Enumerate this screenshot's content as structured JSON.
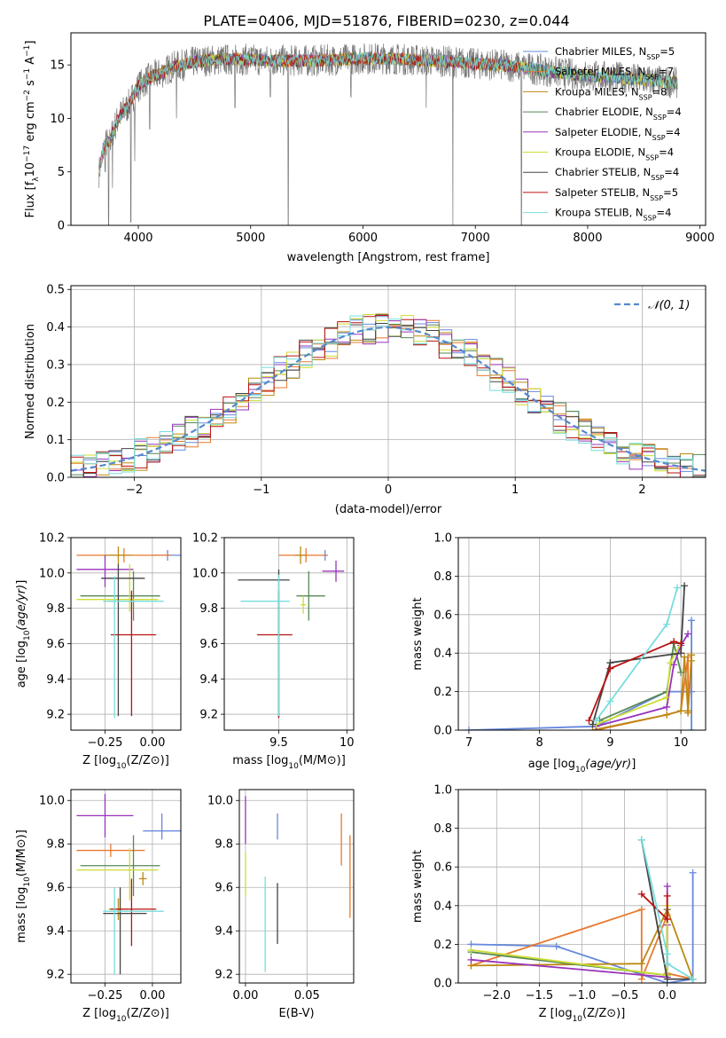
{
  "figure_title": "PLATE=0406, MJD=51876, FIBERID=0230, z=0.044",
  "series": [
    {
      "key": "chabrier_miles",
      "label": "Chabrier MILES, N",
      "nssp": "5",
      "color": "#6688dd"
    },
    {
      "key": "salpeter_miles",
      "label": "Salpeter MILES, N",
      "nssp": "7",
      "color": "#e8782c"
    },
    {
      "key": "kroupa_miles",
      "label": "Kroupa MILES, N",
      "nssp": "8",
      "color": "#bb8811"
    },
    {
      "key": "chabrier_elodie",
      "label": "Chabrier ELODIE, N",
      "nssp": "4",
      "color": "#558855"
    },
    {
      "key": "salpeter_elodie",
      "label": "Salpeter ELODIE, N",
      "nssp": "4",
      "color": "#9933bb"
    },
    {
      "key": "kroupa_elodie",
      "label": "Kroupa ELODIE, N",
      "nssp": "4",
      "color": "#ccdd33"
    },
    {
      "key": "chabrier_stelib",
      "label": "Chabrier STELIB, N",
      "nssp": "4",
      "color": "#444444"
    },
    {
      "key": "salpeter_stelib",
      "label": "Salpeter STELIB, N",
      "nssp": "5",
      "color": "#bb1111"
    },
    {
      "key": "kroupa_stelib",
      "label": "Kroupa STELIB, N",
      "nssp": "4",
      "color": "#77dddd"
    }
  ],
  "legend_subscript": "SSP",
  "chart_data": [
    {
      "id": "spectrum",
      "type": "line",
      "title": "PLATE=0406, MJD=51876, FIBERID=0230, z=0.044",
      "xlabel": "wavelength [Angstrom, rest frame]",
      "ylabel": "Flux [f",
      "xlim": [
        3400,
        9050
      ],
      "ylim": [
        0,
        18
      ],
      "xticks": [
        4000,
        5000,
        6000,
        7000,
        8000,
        9000
      ],
      "yticks": [
        0,
        5,
        10,
        15
      ],
      "data_color": "#777777",
      "legend": "top-right",
      "anchors_x": [
        3650,
        3700,
        3750,
        3800,
        3850,
        3900,
        3950,
        4000,
        4100,
        4200,
        4300,
        4400,
        4500,
        4600,
        4800,
        5000,
        5200,
        5400,
        5600,
        5800,
        6000,
        6200,
        6400,
        6600,
        6800,
        7000,
        7200,
        7400,
        7600,
        7800,
        8000,
        8200,
        8400,
        8600,
        8800
      ],
      "anchors_y": [
        5,
        7.5,
        8,
        9.5,
        10.5,
        11,
        12,
        13,
        13.8,
        14.2,
        14.8,
        15,
        15.3,
        15.4,
        15.5,
        15.5,
        15.4,
        15.4,
        15.4,
        15.5,
        15.6,
        15.6,
        15.5,
        15.4,
        15.3,
        15.1,
        15,
        14.8,
        14.5,
        14.2,
        14,
        13.9,
        13.7,
        13.5,
        13.3
      ],
      "dips": [
        [
          3706,
          5
        ],
        [
          3735,
          0
        ],
        [
          3770,
          3.5
        ],
        [
          3934,
          0.3
        ],
        [
          3968,
          6
        ],
        [
          4101,
          9
        ],
        [
          4340,
          10
        ],
        [
          4861,
          11
        ],
        [
          5175,
          12
        ],
        [
          5335,
          0
        ],
        [
          5893,
          12
        ],
        [
          6563,
          11
        ],
        [
          6800,
          0
        ],
        [
          7410,
          0
        ]
      ]
    },
    {
      "id": "residuals",
      "type": "histogram",
      "xlabel": "(data-model)/error",
      "ylabel": "Normed distribution",
      "xlim": [
        -2.5,
        2.5
      ],
      "ylim": [
        0,
        0.51
      ],
      "xticks": [
        -2,
        -1,
        0,
        1,
        2
      ],
      "yticks": [
        0,
        0.1,
        0.2,
        0.3,
        0.4,
        0.5
      ],
      "bin_width": 0.1,
      "grid": true,
      "legend_label": "𝒩(0, 1)",
      "legend_color": "#5588cc",
      "legend": "top-right",
      "gaussian": {
        "mu": 0,
        "sigma": 1
      }
    },
    {
      "id": "age_vs_Z",
      "type": "errorbar",
      "xlabel": "Z [log",
      "ylabel": "age  [log",
      "xlim": [
        -0.43,
        0.15
      ],
      "ylim": [
        9.11,
        10.2
      ],
      "xticks": [
        -0.25,
        0
      ],
      "yticks": [
        9.2,
        9.4,
        9.6,
        9.8,
        10.0,
        10.2
      ],
      "xtick_labels": [
        "−0.25",
        "0.00"
      ],
      "grid": true,
      "points": [
        {
          "series": 0,
          "x": 0.08,
          "y": 10.1,
          "xerr": [
            0.08,
            0.08
          ],
          "yerr": [
            0.03,
            0.03
          ]
        },
        {
          "series": 1,
          "x": -0.15,
          "y": 10.1,
          "xerr": [
            0.25,
            0.25
          ],
          "yerr": [
            0.04,
            0.04
          ]
        },
        {
          "series": 2,
          "x": -0.18,
          "y": 10.1,
          "xerr": [
            0.07,
            0.07
          ],
          "yerr": [
            0.05,
            0.05
          ]
        },
        {
          "series": 3,
          "x": -0.1,
          "y": 9.87,
          "xerr": [
            0.28,
            0.14
          ],
          "yerr": [
            0.14,
            0.14
          ]
        },
        {
          "series": 4,
          "x": -0.25,
          "y": 10.02,
          "xerr": [
            0.15,
            0.15
          ],
          "yerr": [
            0.1,
            0.08
          ]
        },
        {
          "series": 5,
          "x": -0.12,
          "y": 9.85,
          "xerr": [
            0.28,
            0.15
          ],
          "yerr": [
            0.07,
            0.2
          ]
        },
        {
          "series": 6,
          "x": -0.18,
          "y": 9.97,
          "xerr": [
            0.09,
            0.14
          ],
          "yerr": [
            0.78,
            0.08
          ]
        },
        {
          "series": 7,
          "x": -0.11,
          "y": 9.65,
          "xerr": [
            0.11,
            0.13
          ],
          "yerr": [
            0.46,
            0.25
          ]
        },
        {
          "series": 8,
          "x": -0.2,
          "y": 9.84,
          "xerr": [
            0.06,
            0.26
          ],
          "yerr": [
            0.66,
            0.14
          ]
        }
      ]
    },
    {
      "id": "age_vs_mass",
      "type": "errorbar",
      "xlabel": "mass [log",
      "ylabel": "",
      "xlim": [
        9.1,
        10.05
      ],
      "ylim": [
        9.11,
        10.2
      ],
      "xticks": [
        9.5,
        10.0
      ],
      "yticks": [
        9.2,
        9.4,
        9.6,
        9.8,
        10.0,
        10.2
      ],
      "grid": true,
      "points": [
        {
          "series": 0,
          "x": 9.84,
          "y": 10.1,
          "xerr": [
            0.02,
            0.02
          ],
          "yerr": [
            0.03,
            0.03
          ]
        },
        {
          "series": 1,
          "x": 9.7,
          "y": 10.1,
          "xerr": [
            0.2,
            0.15
          ],
          "yerr": [
            0.04,
            0.04
          ]
        },
        {
          "series": 2,
          "x": 9.66,
          "y": 10.1,
          "xerr": [
            0.04,
            0.04
          ],
          "yerr": [
            0.05,
            0.05
          ]
        },
        {
          "series": 3,
          "x": 9.72,
          "y": 9.87,
          "xerr": [
            0.09,
            0.12
          ],
          "yerr": [
            0.14,
            0.14
          ]
        },
        {
          "series": 4,
          "x": 9.92,
          "y": 10.01,
          "xerr": [
            0.1,
            0.06
          ],
          "yerr": [
            0.06,
            0.06
          ]
        },
        {
          "series": 5,
          "x": 9.68,
          "y": 9.82,
          "xerr": [
            0.02,
            0.02
          ],
          "yerr": [
            0.05,
            0.05
          ]
        },
        {
          "series": 6,
          "x": 9.5,
          "y": 9.96,
          "xerr": [
            0.3,
            0.08
          ],
          "yerr": [
            0.78,
            0.06
          ]
        },
        {
          "series": 7,
          "x": 9.5,
          "y": 9.65,
          "xerr": [
            0.16,
            0.1
          ],
          "yerr": [
            0.47,
            0.25
          ]
        },
        {
          "series": 8,
          "x": 9.5,
          "y": 9.84,
          "xerr": [
            0.28,
            0.08
          ],
          "yerr": [
            0.65,
            0.15
          ]
        }
      ]
    },
    {
      "id": "mw_vs_age",
      "type": "line",
      "xlabel": "age  [log",
      "ylabel": "mass weight",
      "xlim": [
        6.85,
        10.35
      ],
      "ylim": [
        0,
        1.0
      ],
      "xticks": [
        7,
        8,
        9,
        10
      ],
      "yticks": [
        0,
        0.2,
        0.4,
        0.6,
        0.8,
        1.0
      ],
      "grid": true,
      "lines": [
        {
          "series": 0,
          "x": [
            7.0,
            8.8,
            9.8,
            10.15,
            10.15,
            10.15
          ],
          "y": [
            0.0,
            0.02,
            0.2,
            0.2,
            0.57,
            0.0
          ]
        },
        {
          "series": 1,
          "x": [
            8.8,
            9.8,
            10.0,
            10.1,
            10.1,
            10.1,
            10.15
          ],
          "y": [
            0.0,
            0.08,
            0.1,
            0.38,
            0.1,
            0.09,
            0.39
          ]
        },
        {
          "series": 2,
          "x": [
            8.75,
            9.8,
            10.0,
            10.05,
            10.1,
            10.1,
            10.15,
            10.15
          ],
          "y": [
            0.0,
            0.08,
            0.1,
            0.38,
            0.1,
            0.09,
            0.39,
            0.36
          ]
        },
        {
          "series": 3,
          "x": [
            8.85,
            9.8,
            9.9,
            10.0
          ],
          "y": [
            0.05,
            0.2,
            0.45,
            0.3
          ]
        },
        {
          "series": 4,
          "x": [
            8.8,
            9.8,
            9.9,
            10.0,
            10.1
          ],
          "y": [
            0.02,
            0.12,
            0.34,
            0.44,
            0.5
          ]
        },
        {
          "series": 5,
          "x": [
            8.8,
            9.8,
            9.85,
            10.0
          ],
          "y": [
            0.03,
            0.17,
            0.35,
            0.45
          ]
        },
        {
          "series": 6,
          "x": [
            8.75,
            9.0,
            10.0,
            10.05
          ],
          "y": [
            0.03,
            0.35,
            0.4,
            0.75
          ]
        },
        {
          "series": 7,
          "x": [
            8.7,
            9.0,
            9.9,
            10.0
          ],
          "y": [
            0.05,
            0.32,
            0.46,
            0.45
          ]
        },
        {
          "series": 8,
          "x": [
            8.8,
            9.0,
            9.8,
            9.95
          ],
          "y": [
            0.05,
            0.15,
            0.55,
            0.74
          ]
        }
      ]
    },
    {
      "id": "mass_vs_Z",
      "type": "errorbar",
      "xlabel": "Z [log",
      "ylabel": "mass [log",
      "xlim": [
        -0.43,
        0.15
      ],
      "ylim": [
        9.16,
        10.05
      ],
      "xticks": [
        -0.25,
        0
      ],
      "yticks": [
        9.2,
        9.4,
        9.6,
        9.8,
        10.0
      ],
      "xtick_labels": [
        "−0.25",
        "0.00"
      ],
      "grid": true,
      "points": [
        {
          "series": 0,
          "x": 0.05,
          "y": 9.86,
          "xerr": [
            0.1,
            0.1
          ],
          "yerr": [
            0.04,
            0.08
          ]
        },
        {
          "series": 1,
          "x": -0.22,
          "y": 9.77,
          "xerr": [
            0.18,
            0.18
          ],
          "yerr": [
            0.03,
            0.03
          ]
        },
        {
          "series": 2,
          "x": -0.18,
          "y": 9.5,
          "xerr": [
            0.05,
            0.05
          ],
          "yerr": [
            0.05,
            0.05
          ]
        },
        {
          "series": 3,
          "x": -0.1,
          "y": 9.7,
          "xerr": [
            0.28,
            0.14
          ],
          "yerr": [
            0.14,
            0.14
          ]
        },
        {
          "series": 4,
          "x": -0.25,
          "y": 9.93,
          "xerr": [
            0.15,
            0.15
          ],
          "yerr": [
            0.1,
            0.1
          ]
        },
        {
          "series": 5,
          "x": -0.12,
          "y": 9.68,
          "xerr": [
            0.28,
            0.15
          ],
          "yerr": [
            0.14,
            0.1
          ]
        },
        {
          "series": 6,
          "x": -0.17,
          "y": 9.48,
          "xerr": [
            0.09,
            0.14
          ],
          "yerr": [
            0.28,
            0.12
          ]
        },
        {
          "series": 7,
          "x": -0.11,
          "y": 9.5,
          "xerr": [
            0.11,
            0.13
          ],
          "yerr": [
            0.17,
            0.14
          ]
        },
        {
          "series": 8,
          "x": -0.2,
          "y": 9.49,
          "xerr": [
            0.06,
            0.26
          ],
          "yerr": [
            0.29,
            0.11
          ]
        },
        {
          "series": 2,
          "x": -0.05,
          "y": 9.64,
          "xerr": [
            0.02,
            0.02
          ],
          "yerr": [
            0.03,
            0.03
          ]
        }
      ]
    },
    {
      "id": "mass_vs_EBV",
      "type": "errorbar",
      "xlabel": "E(B-V)",
      "ylabel": "",
      "xlim": [
        -0.005,
        0.088
      ],
      "ylim": [
        9.16,
        10.05
      ],
      "xticks": [
        0,
        0.05
      ],
      "xtick_labels": [
        "0.00",
        "0.05"
      ],
      "yticks": [
        9.2,
        9.4,
        9.6,
        9.8,
        10.0
      ],
      "grid": true,
      "points": [
        {
          "series": 0,
          "x": 0.026,
          "y": 9.86,
          "xerr": [
            0,
            0
          ],
          "yerr": [
            0.04,
            0.08
          ]
        },
        {
          "series": 1,
          "x": 0.085,
          "y": 9.65,
          "xerr": [
            0,
            0
          ],
          "yerr": [
            0.19,
            0.19
          ]
        },
        {
          "series": 4,
          "x": 0.0,
          "y": 9.9,
          "xerr": [
            0,
            0
          ],
          "yerr": [
            0.1,
            0.12
          ]
        },
        {
          "series": 5,
          "x": 0.0,
          "y": 9.66,
          "xerr": [
            0,
            0
          ],
          "yerr": [
            0.1,
            0.1
          ]
        },
        {
          "series": 6,
          "x": 0.026,
          "y": 9.48,
          "xerr": [
            0,
            0
          ],
          "yerr": [
            0.14,
            0.14
          ]
        },
        {
          "series": 8,
          "x": 0.016,
          "y": 9.43,
          "xerr": [
            0,
            0
          ],
          "yerr": [
            0.22,
            0.22
          ]
        },
        {
          "series": 1,
          "x": 0.078,
          "y": 9.82,
          "xerr": [
            0,
            0
          ],
          "yerr": [
            0.12,
            0.12
          ]
        }
      ]
    },
    {
      "id": "mw_vs_Z",
      "type": "line",
      "xlabel": "Z [log",
      "ylabel": "mass weight",
      "xlim": [
        -2.45,
        0.45
      ],
      "ylim": [
        0,
        1.0
      ],
      "xticks": [
        -2.0,
        -1.5,
        -1.0,
        -0.5,
        0.0
      ],
      "xtick_labels": [
        "−2.0",
        "−1.5",
        "−1.0",
        "−0.5",
        "0.0"
      ],
      "yticks": [
        0,
        0.2,
        0.4,
        0.6,
        0.8,
        1.0
      ],
      "grid": true,
      "lines": [
        {
          "series": 0,
          "x": [
            -2.3,
            -1.3,
            0.0,
            0.3,
            0.3
          ],
          "y": [
            0.2,
            0.19,
            0.0,
            0.02,
            0.57
          ]
        },
        {
          "series": 1,
          "x": [
            -2.3,
            -0.3,
            -0.3,
            0.0,
            0.0,
            0.3
          ],
          "y": [
            0.09,
            0.38,
            0.02,
            0.35,
            0.05,
            0.02
          ]
        },
        {
          "series": 2,
          "x": [
            -2.3,
            -0.3,
            0.0,
            0.3
          ],
          "y": [
            0.09,
            0.1,
            0.38,
            0.02
          ]
        },
        {
          "series": 3,
          "x": [
            -2.3,
            0.0,
            0.0
          ],
          "y": [
            0.16,
            0.04,
            0.38
          ]
        },
        {
          "series": 4,
          "x": [
            -2.3,
            0.0,
            0.0,
            0.0
          ],
          "y": [
            0.12,
            0.03,
            0.5,
            0.3
          ]
        },
        {
          "series": 5,
          "x": [
            -2.3,
            0.0,
            0.0
          ],
          "y": [
            0.17,
            0.04,
            0.4
          ]
        },
        {
          "series": 6,
          "x": [
            -0.3,
            0.0,
            0.3
          ],
          "y": [
            0.74,
            0.02,
            0.02
          ]
        },
        {
          "series": 7,
          "x": [
            -0.3,
            0.0,
            0.0
          ],
          "y": [
            0.46,
            0.33,
            0.45
          ]
        },
        {
          "series": 8,
          "x": [
            -0.3,
            0.0,
            0.0,
            0.3
          ],
          "y": [
            0.74,
            0.15,
            0.1,
            0.02
          ]
        }
      ]
    }
  ]
}
